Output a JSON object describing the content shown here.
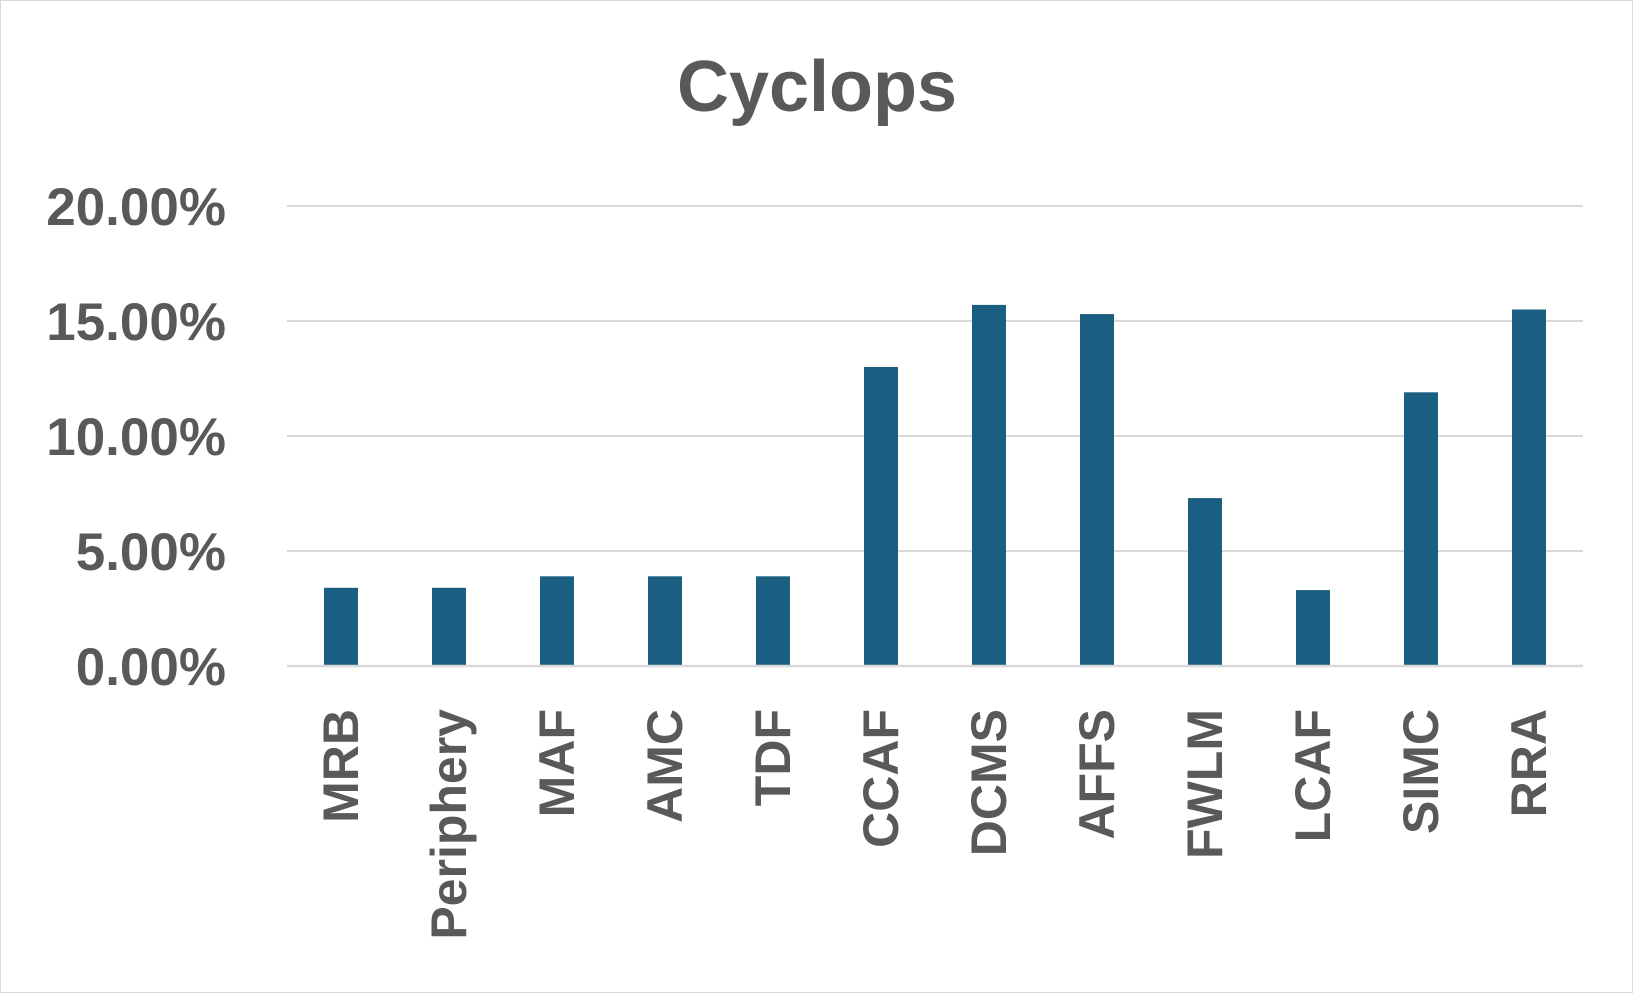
{
  "chart_data": {
    "type": "bar",
    "title": "Cyclops",
    "xlabel": "",
    "ylabel": "",
    "categories": [
      "MRB",
      "Periphery",
      "MAF",
      "AMC",
      "TDF",
      "CCAF",
      "DCMS",
      "AFFS",
      "FWLM",
      "LCAF",
      "SIMC",
      "RRA"
    ],
    "values": [
      0.034,
      0.034,
      0.039,
      0.039,
      0.039,
      0.13,
      0.157,
      0.153,
      0.073,
      0.033,
      0.119,
      0.155
    ],
    "y_ticks": [
      {
        "value": 0,
        "label": "0.00%"
      },
      {
        "value": 0.05,
        "label": "5.00%"
      },
      {
        "value": 0.1,
        "label": "10.00%"
      },
      {
        "value": 0.15,
        "label": "15.00%"
      },
      {
        "value": 0.2,
        "label": "20.00%"
      }
    ],
    "ylim": [
      0,
      0.2
    ],
    "grid": true,
    "legend": "none",
    "bar_color": "#1a5f82",
    "text_color": "#595959",
    "grid_color": "#d9d9d9"
  }
}
